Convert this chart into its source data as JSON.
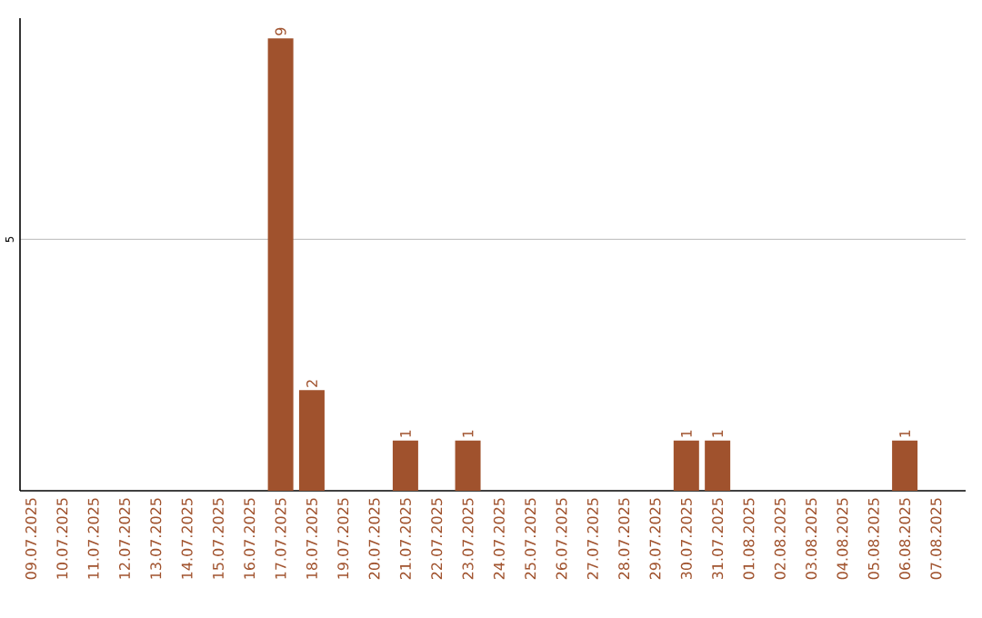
{
  "chart_data": {
    "type": "bar",
    "categories": [
      "09.07.2025",
      "10.07.2025",
      "11.07.2025",
      "12.07.2025",
      "13.07.2025",
      "14.07.2025",
      "15.07.2025",
      "16.07.2025",
      "17.07.2025",
      "18.07.2025",
      "19.07.2025",
      "20.07.2025",
      "21.07.2025",
      "22.07.2025",
      "23.07.2025",
      "24.07.2025",
      "25.07.2025",
      "26.07.2025",
      "27.07.2025",
      "28.07.2025",
      "29.07.2025",
      "30.07.2025",
      "31.07.2025",
      "01.08.2025",
      "02.08.2025",
      "03.08.2025",
      "04.08.2025",
      "05.08.2025",
      "06.08.2025",
      "07.08.2025"
    ],
    "values": [
      0,
      0,
      0,
      0,
      0,
      0,
      0,
      0,
      9,
      2,
      0,
      0,
      1,
      0,
      1,
      0,
      0,
      0,
      0,
      0,
      0,
      1,
      1,
      0,
      0,
      0,
      0,
      0,
      1,
      0
    ],
    "value_labels": [
      null,
      null,
      null,
      null,
      null,
      null,
      null,
      null,
      "9",
      "2",
      null,
      null,
      "1",
      null,
      "1",
      null,
      null,
      null,
      null,
      null,
      null,
      "1",
      "1",
      null,
      null,
      null,
      null,
      null,
      "1",
      null
    ],
    "color": "#a0522d",
    "ylim": [
      0,
      9.4
    ],
    "yticks": [
      5
    ],
    "grid": "y"
  }
}
